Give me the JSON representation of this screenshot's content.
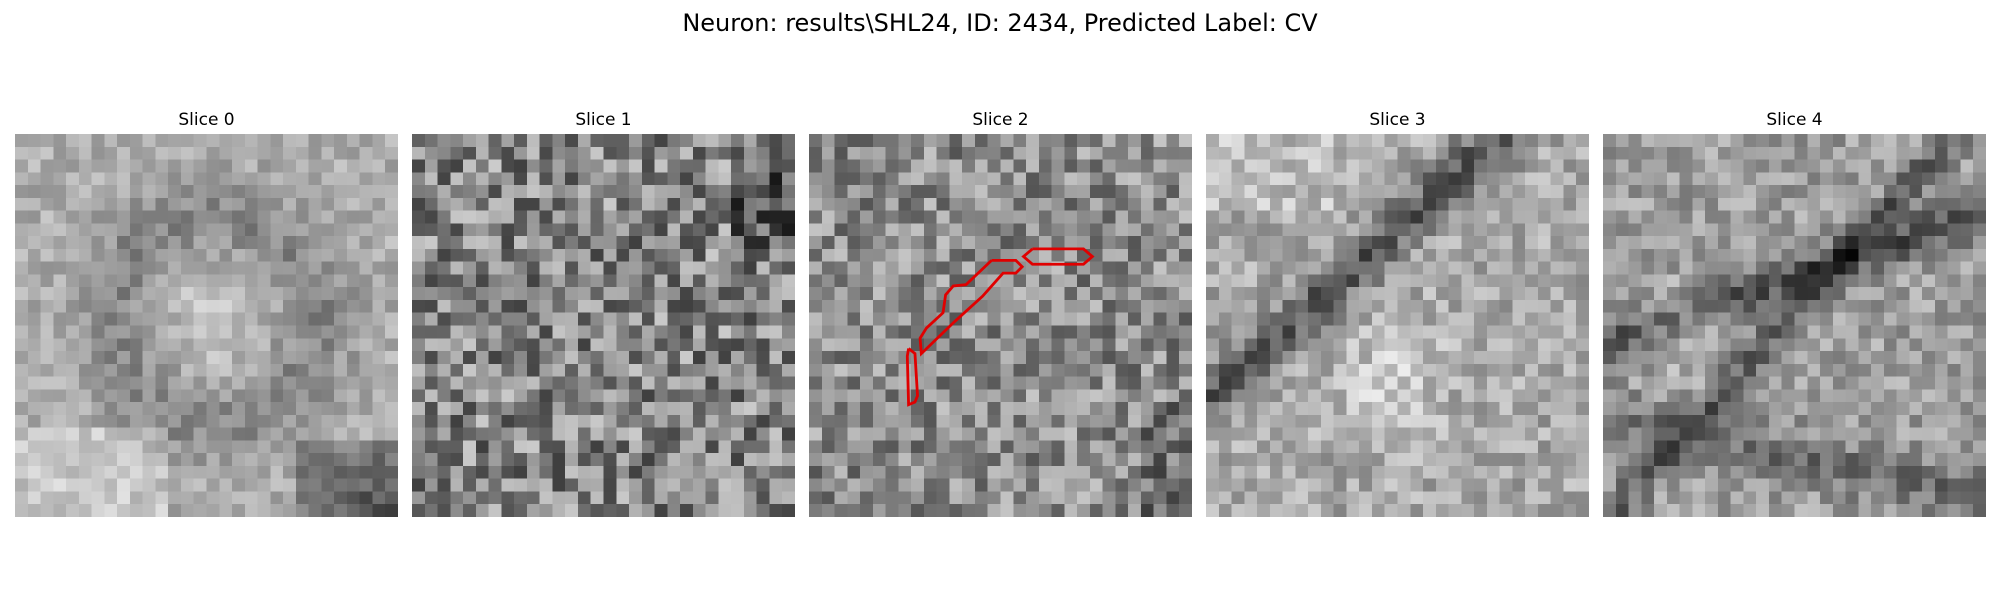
{
  "figure": {
    "title": "Neuron: results\\SHL24, ID: 2434, Predicted Label: CV"
  },
  "slices": [
    {
      "title": "Slice 0",
      "icon": "grayscale-noise-image",
      "seed": 11,
      "pattern": "soft-light-ring"
    },
    {
      "title": "Slice 1",
      "icon": "grayscale-noise-image",
      "seed": 23,
      "pattern": "high-noise"
    },
    {
      "title": "Slice 2",
      "icon": "grayscale-noise-image",
      "seed": 37,
      "pattern": "medium-noise",
      "overlay": "red-contour"
    },
    {
      "title": "Slice 3",
      "icon": "grayscale-noise-image",
      "seed": 41,
      "pattern": "dark-diagonal-band"
    },
    {
      "title": "Slice 4",
      "icon": "grayscale-noise-image",
      "seed": 59,
      "pattern": "dark-vein-network"
    }
  ],
  "overlay_color": "#e00000"
}
